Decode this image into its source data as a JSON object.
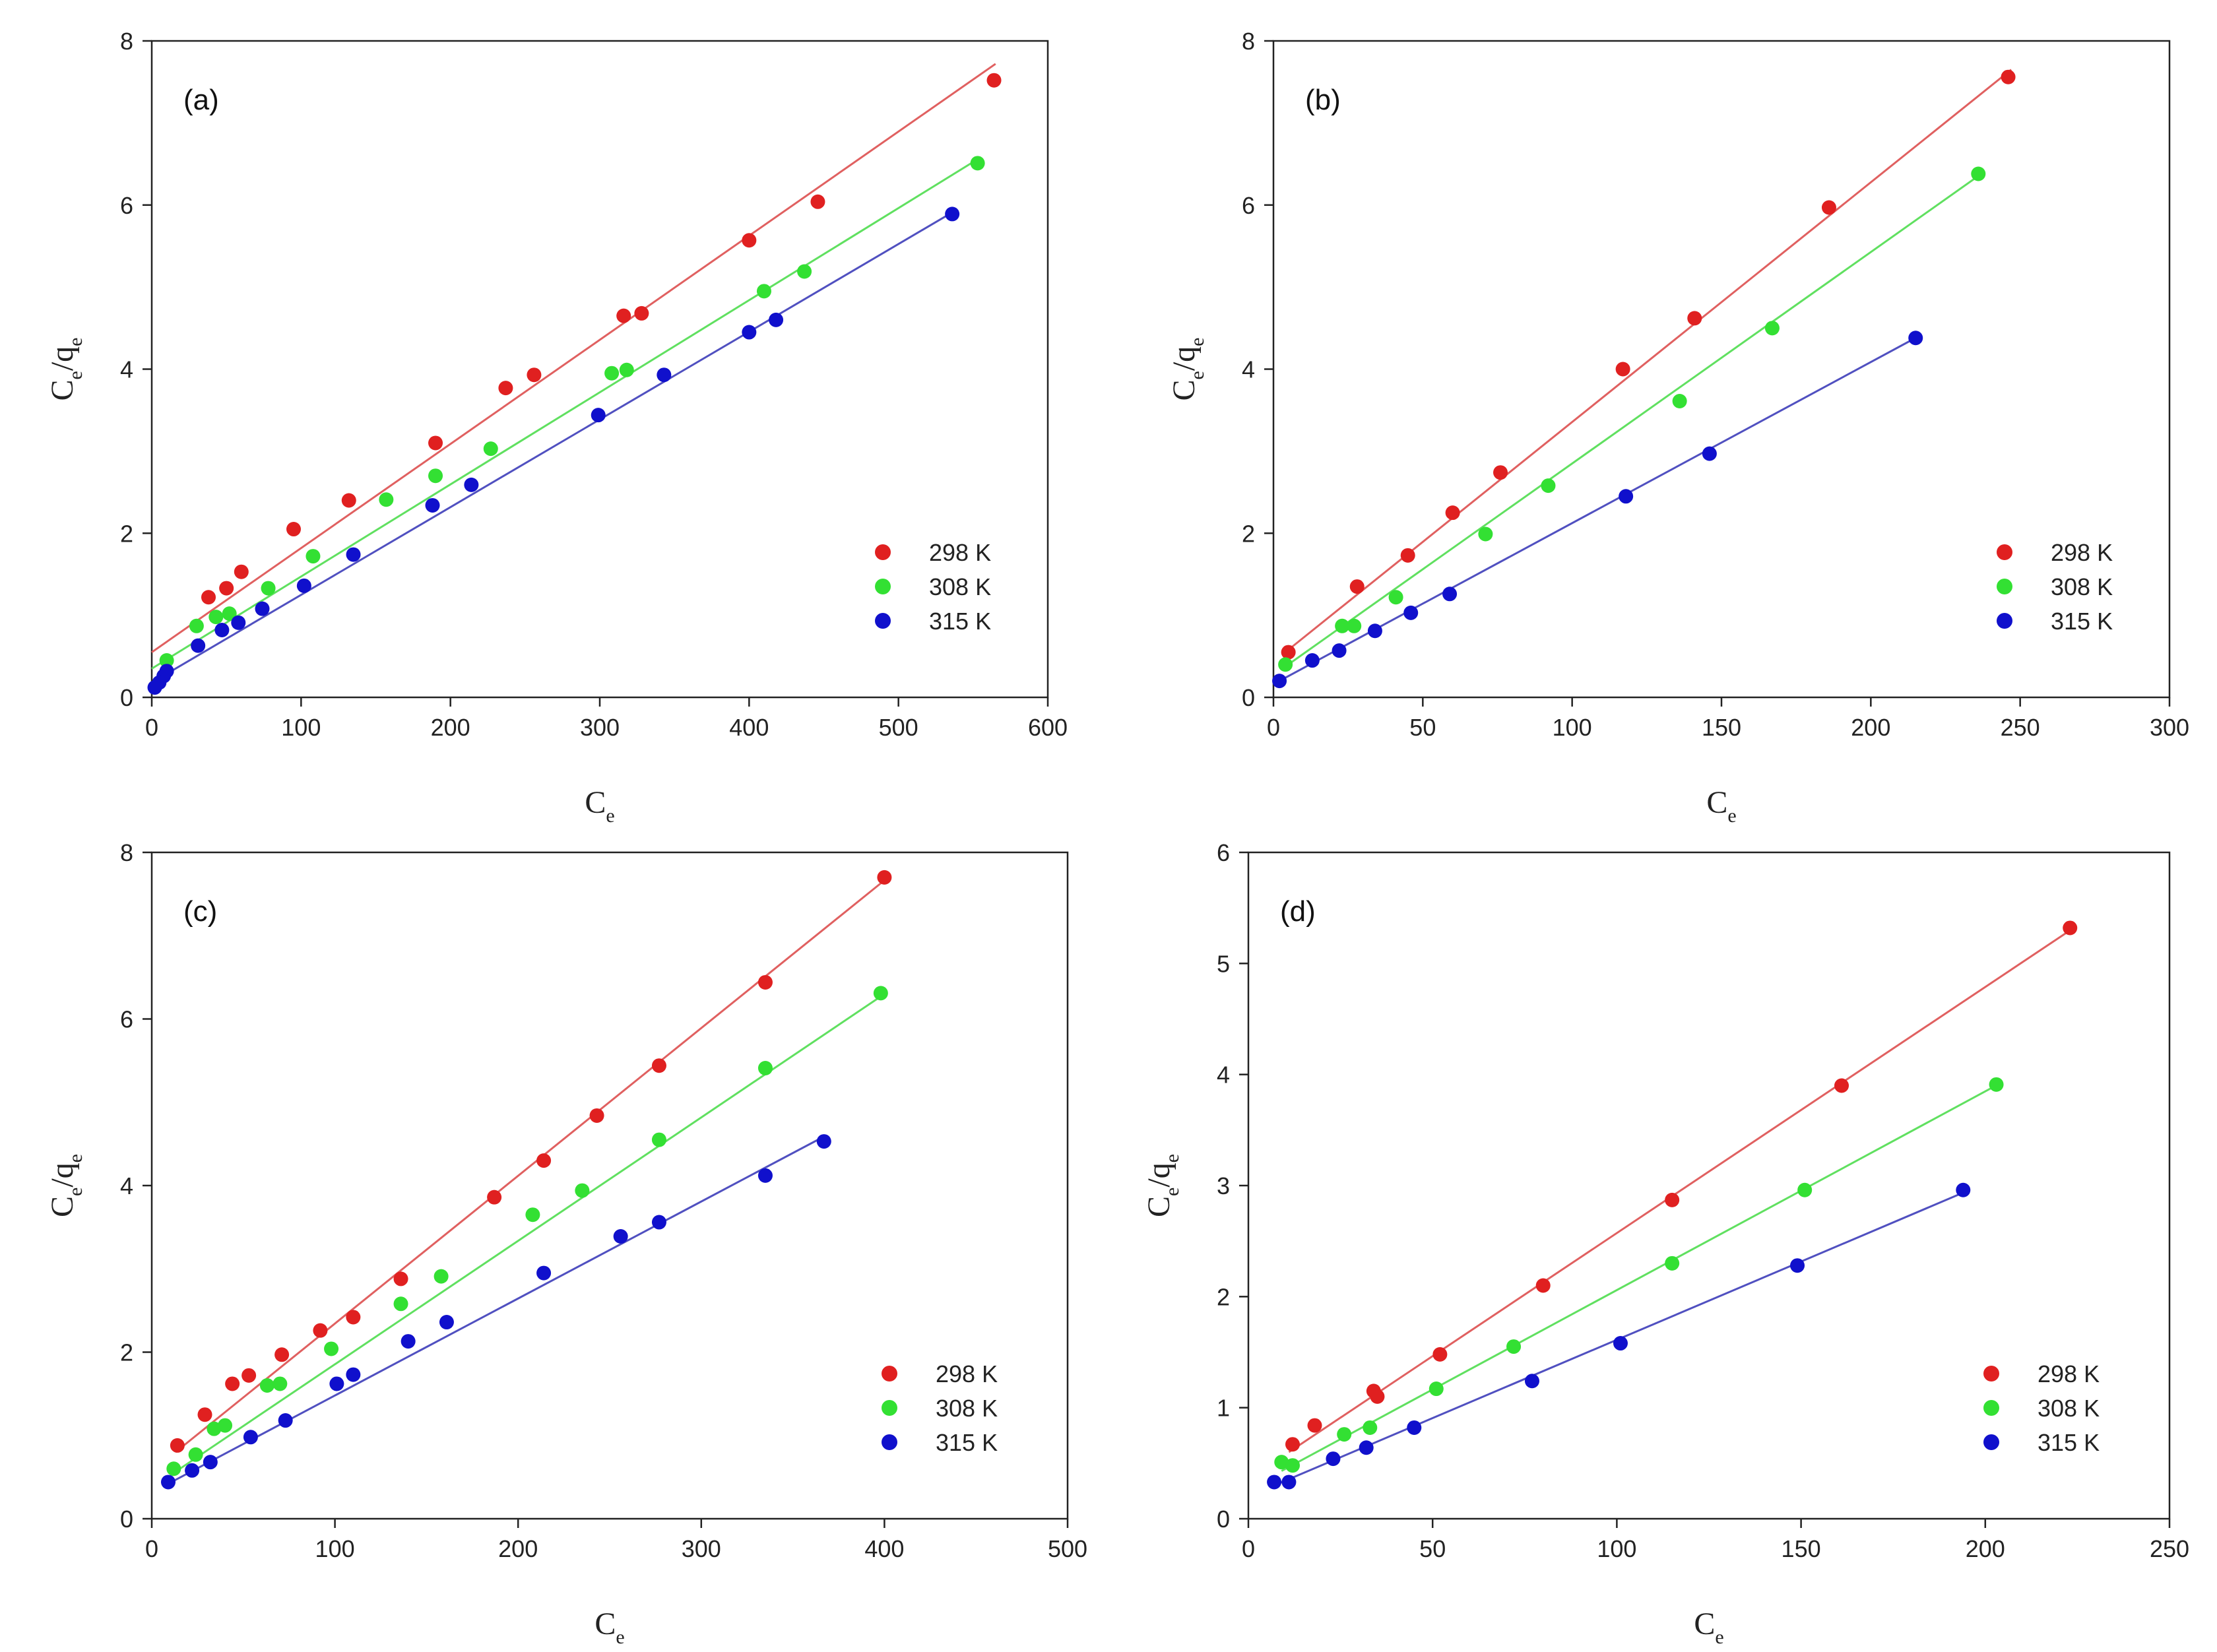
{
  "colors": {
    "298K": "#e02020",
    "308K": "#33e033",
    "315K": "#1010cc",
    "line298": "#e06060",
    "line308": "#60e060",
    "line315": "#5050c0"
  },
  "chart_data": [
    {
      "type": "scatter",
      "panel_label": "(a)",
      "xlabel": "C",
      "xlabel_sub": "e",
      "ylabel_main": "C",
      "ylabel_sub1": "e",
      "ylabel_mid": "/q",
      "ylabel_sub2": "e",
      "xlim": [
        0,
        600
      ],
      "ylim": [
        0,
        8
      ],
      "xticks": [
        0,
        100,
        200,
        300,
        400,
        500,
        600
      ],
      "yticks": [
        0,
        2,
        4,
        6,
        8
      ],
      "legend_position": "bottom-right",
      "series": [
        {
          "name": "298 K",
          "color_key": "298K",
          "line_key": "line298",
          "fit": [
            [
              0,
              0.55
            ],
            [
              565,
              7.72
            ]
          ],
          "points": [
            [
              38,
              1.22
            ],
            [
              50,
              1.33
            ],
            [
              60,
              1.53
            ],
            [
              95,
              2.05
            ],
            [
              132,
              2.4
            ],
            [
              190,
              3.1
            ],
            [
              237,
              3.77
            ],
            [
              256,
              3.93
            ],
            [
              316,
              4.65
            ],
            [
              328,
              4.68
            ],
            [
              400,
              5.57
            ],
            [
              446,
              6.04
            ],
            [
              564,
              7.52
            ]
          ]
        },
        {
          "name": "308 K",
          "color_key": "308K",
          "line_key": "line308",
          "fit": [
            [
              0,
              0.35
            ],
            [
              555,
              6.58
            ]
          ],
          "points": [
            [
              10,
              0.45
            ],
            [
              30,
              0.87
            ],
            [
              43,
              0.98
            ],
            [
              52,
              1.02
            ],
            [
              78,
              1.33
            ],
            [
              108,
              1.72
            ],
            [
              157,
              2.41
            ],
            [
              190,
              2.7
            ],
            [
              227,
              3.03
            ],
            [
              308,
              3.95
            ],
            [
              318,
              3.99
            ],
            [
              410,
              4.95
            ],
            [
              437,
              5.19
            ],
            [
              553,
              6.51
            ]
          ]
        },
        {
          "name": "315 K",
          "color_key": "315K",
          "line_key": "line315",
          "fit": [
            [
              0,
              0.18
            ],
            [
              537,
              5.92
            ]
          ],
          "points": [
            [
              2,
              0.12
            ],
            [
              5,
              0.18
            ],
            [
              8,
              0.26
            ],
            [
              10,
              0.32
            ],
            [
              31,
              0.63
            ],
            [
              47,
              0.82
            ],
            [
              58,
              0.91
            ],
            [
              74,
              1.08
            ],
            [
              102,
              1.36
            ],
            [
              135,
              1.74
            ],
            [
              188,
              2.34
            ],
            [
              214,
              2.59
            ],
            [
              299,
              3.44
            ],
            [
              343,
              3.93
            ],
            [
              400,
              4.45
            ],
            [
              418,
              4.6
            ],
            [
              536,
              5.89
            ]
          ]
        }
      ]
    },
    {
      "type": "scatter",
      "panel_label": "(b)",
      "xlabel": "C",
      "xlabel_sub": "e",
      "ylabel_main": "C",
      "ylabel_sub1": "e",
      "ylabel_mid": "/q",
      "ylabel_sub2": "e",
      "xlim": [
        0,
        300
      ],
      "ylim": [
        0,
        8
      ],
      "xticks": [
        0,
        50,
        100,
        150,
        200,
        250,
        300
      ],
      "yticks": [
        0,
        2,
        4,
        6,
        8
      ],
      "legend_position": "bottom-right",
      "series": [
        {
          "name": "298 K",
          "color_key": "298K",
          "line_key": "line298",
          "fit": [
            [
              5,
              0.58
            ],
            [
              247,
              7.65
            ]
          ],
          "points": [
            [
              5,
              0.55
            ],
            [
              28,
              1.35
            ],
            [
              45,
              1.73
            ],
            [
              60,
              2.25
            ],
            [
              76,
              2.74
            ],
            [
              117,
              4.0
            ],
            [
              141,
              4.62
            ],
            [
              186,
              5.97
            ],
            [
              246,
              7.56
            ]
          ]
        },
        {
          "name": "308 K",
          "color_key": "308K",
          "line_key": "line308",
          "fit": [
            [
              3,
              0.35
            ],
            [
              237,
              6.38
            ]
          ],
          "points": [
            [
              4,
              0.4
            ],
            [
              23,
              0.87
            ],
            [
              27,
              0.87
            ],
            [
              41,
              1.22
            ],
            [
              71,
              1.99
            ],
            [
              92,
              2.58
            ],
            [
              136,
              3.61
            ],
            [
              167,
              4.5
            ],
            [
              236,
              6.38
            ]
          ]
        },
        {
          "name": "315 K",
          "color_key": "315K",
          "line_key": "line315",
          "fit": [
            [
              2,
              0.2
            ],
            [
              216,
              4.4
            ]
          ],
          "points": [
            [
              2,
              0.2
            ],
            [
              13,
              0.45
            ],
            [
              22,
              0.57
            ],
            [
              34,
              0.81
            ],
            [
              46,
              1.03
            ],
            [
              59,
              1.26
            ],
            [
              118,
              2.45
            ],
            [
              146,
              2.97
            ],
            [
              215,
              4.38
            ]
          ]
        }
      ]
    },
    {
      "type": "scatter",
      "panel_label": "(c)",
      "xlabel": "C",
      "xlabel_sub": "e",
      "ylabel_main": "C",
      "ylabel_sub1": "e",
      "ylabel_mid": "/q",
      "ylabel_sub2": "e",
      "xlim": [
        0,
        500
      ],
      "ylim": [
        0,
        8
      ],
      "xticks": [
        0,
        100,
        200,
        300,
        400,
        500
      ],
      "yticks": [
        0,
        2,
        4,
        6,
        8
      ],
      "legend_position": "bottom-right",
      "series": [
        {
          "name": "298 K",
          "color_key": "298K",
          "line_key": "line298",
          "fit": [
            [
              13,
              0.8
            ],
            [
              402,
              7.7
            ]
          ],
          "points": [
            [
              14,
              0.88
            ],
            [
              29,
              1.25
            ],
            [
              44,
              1.62
            ],
            [
              53,
              1.72
            ],
            [
              71,
              1.97
            ],
            [
              92,
              2.26
            ],
            [
              110,
              2.42
            ],
            [
              136,
              2.88
            ],
            [
              187,
              3.86
            ],
            [
              214,
              4.3
            ],
            [
              243,
              4.84
            ],
            [
              277,
              5.44
            ],
            [
              335,
              6.44
            ],
            [
              400,
              7.7
            ]
          ]
        },
        {
          "name": "308 K",
          "color_key": "308K",
          "line_key": "line308",
          "fit": [
            [
              12,
              0.55
            ],
            [
              400,
              6.3
            ]
          ],
          "points": [
            [
              12,
              0.6
            ],
            [
              24,
              0.77
            ],
            [
              34,
              1.08
            ],
            [
              40,
              1.12
            ],
            [
              63,
              1.6
            ],
            [
              70,
              1.62
            ],
            [
              98,
              2.04
            ],
            [
              136,
              2.58
            ],
            [
              158,
              2.91
            ],
            [
              208,
              3.65
            ],
            [
              235,
              3.94
            ],
            [
              277,
              4.55
            ],
            [
              335,
              5.41
            ],
            [
              398,
              6.31
            ]
          ]
        },
        {
          "name": "315 K",
          "color_key": "315K",
          "line_key": "line315",
          "fit": [
            [
              9,
              0.42
            ],
            [
              368,
              4.6
            ]
          ],
          "points": [
            [
              9,
              0.44
            ],
            [
              22,
              0.58
            ],
            [
              32,
              0.68
            ],
            [
              54,
              0.98
            ],
            [
              73,
              1.18
            ],
            [
              101,
              1.62
            ],
            [
              110,
              1.73
            ],
            [
              140,
              2.13
            ],
            [
              161,
              2.36
            ],
            [
              214,
              2.95
            ],
            [
              256,
              3.39
            ],
            [
              277,
              3.56
            ],
            [
              335,
              4.12
            ],
            [
              367,
              4.53
            ]
          ]
        }
      ]
    },
    {
      "type": "scatter",
      "panel_label": "(d)",
      "xlabel": "C",
      "xlabel_sub": "e",
      "ylabel_main": "C",
      "ylabel_sub1": "e",
      "ylabel_mid": "/q",
      "ylabel_sub2": "e",
      "xlim": [
        0,
        250
      ],
      "ylim": [
        0,
        6
      ],
      "xticks": [
        0,
        50,
        100,
        150,
        200,
        250
      ],
      "yticks": [
        0,
        1,
        2,
        3,
        4,
        5,
        6
      ],
      "legend_position": "bottom-right",
      "series": [
        {
          "name": "298 K",
          "color_key": "298K",
          "line_key": "line298",
          "fit": [
            [
              11,
              0.6
            ],
            [
              224,
              5.32
            ]
          ],
          "points": [
            [
              12,
              0.67
            ],
            [
              18,
              0.84
            ],
            [
              34,
              1.15
            ],
            [
              35,
              1.1
            ],
            [
              52,
              1.48
            ],
            [
              80,
              2.1
            ],
            [
              115,
              2.87
            ],
            [
              161,
              3.9
            ],
            [
              223,
              5.32
            ]
          ]
        },
        {
          "name": "308 K",
          "color_key": "308K",
          "line_key": "line308",
          "fit": [
            [
              9,
              0.43
            ],
            [
              204,
              3.92
            ]
          ],
          "points": [
            [
              9,
              0.51
            ],
            [
              12,
              0.48
            ],
            [
              26,
              0.76
            ],
            [
              33,
              0.82
            ],
            [
              51,
              1.17
            ],
            [
              72,
              1.55
            ],
            [
              115,
              2.3
            ],
            [
              151,
              2.96
            ],
            [
              203,
              3.91
            ]
          ]
        },
        {
          "name": "315 K",
          "color_key": "315K",
          "line_key": "line315",
          "fit": [
            [
              7,
              0.3
            ],
            [
              195,
              2.95
            ]
          ],
          "points": [
            [
              7,
              0.33
            ],
            [
              11,
              0.33
            ],
            [
              23,
              0.54
            ],
            [
              32,
              0.64
            ],
            [
              45,
              0.82
            ],
            [
              77,
              1.24
            ],
            [
              101,
              1.58
            ],
            [
              149,
              2.28
            ],
            [
              194,
              2.96
            ]
          ]
        }
      ]
    }
  ]
}
